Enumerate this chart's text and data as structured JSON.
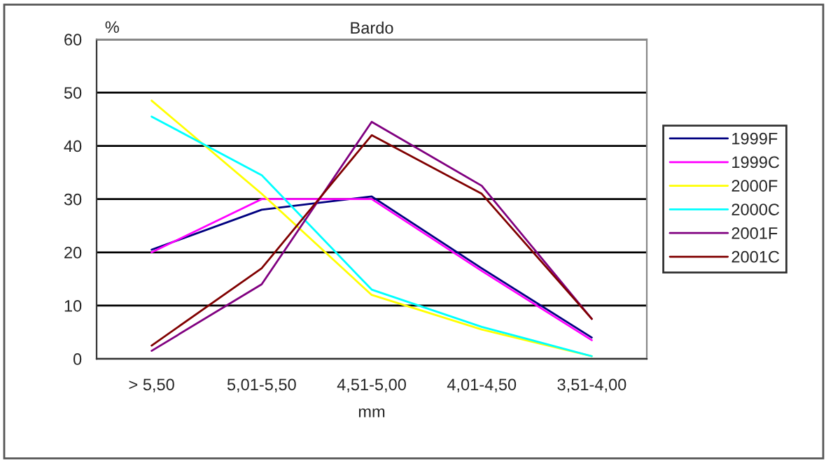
{
  "chart_data": {
    "type": "line",
    "title": "Bardo",
    "xlabel": "mm",
    "ylabel": "%",
    "categories": [
      "> 5,50",
      "5,01-5,50",
      "4,51-5,00",
      "4,01-4,50",
      "3,51-4,00"
    ],
    "series": [
      {
        "name": "1999F",
        "color": "#000080",
        "values": [
          20.5,
          28,
          30.5,
          17,
          4
        ]
      },
      {
        "name": "1999C",
        "color": "#ff00ff",
        "values": [
          20,
          30,
          30,
          16.5,
          3.5
        ]
      },
      {
        "name": "2000F",
        "color": "#ffff00",
        "values": [
          48.5,
          31,
          12,
          5.5,
          0.5
        ]
      },
      {
        "name": "2000C",
        "color": "#00ffff",
        "values": [
          45.5,
          34.5,
          13,
          6,
          0.5
        ]
      },
      {
        "name": "2001F",
        "color": "#800080",
        "values": [
          1.5,
          14,
          44.5,
          32.5,
          7.5
        ]
      },
      {
        "name": "2001C",
        "color": "#800000",
        "values": [
          2.5,
          17,
          42,
          31,
          7.5
        ]
      }
    ],
    "ylim": [
      0,
      60
    ],
    "yticks": [
      0,
      10,
      20,
      30,
      40,
      50,
      60
    ],
    "grid": "y",
    "legend": "right",
    "marker": "none",
    "line_style": "solid"
  }
}
